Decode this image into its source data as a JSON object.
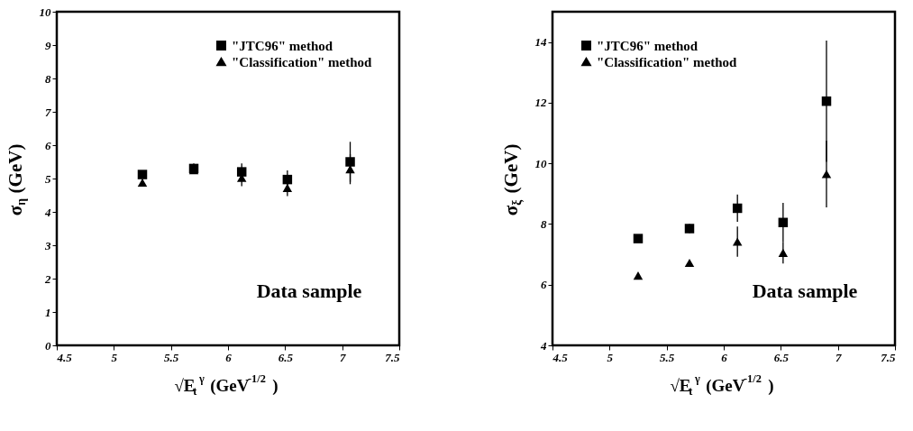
{
  "chart_data": [
    {
      "type": "scatter",
      "xlabel": "√E$_{t}$$^{γ}$ (GeV$^{-1/2}$)",
      "ylabel": "σ$_{η}$ (GeV)",
      "xlim": [
        4.5,
        7.5
      ],
      "xticks": [
        4.5,
        5,
        5.5,
        6,
        6.5,
        7,
        7.5
      ],
      "ylim": [
        0,
        10
      ],
      "yticks": [
        0,
        1,
        2,
        3,
        4,
        5,
        6,
        7,
        8,
        9,
        10
      ],
      "grid": false,
      "legend": "top right",
      "annotations": [
        "Data sample"
      ],
      "series": [
        {
          "name": "\"JTC96\" method",
          "color": "#000000",
          "marker": "square",
          "x": [
            5.25,
            5.7,
            6.12,
            6.52,
            7.07
          ],
          "values": [
            5.12,
            5.3,
            5.2,
            4.97,
            5.5
          ],
          "errors": [
            0.1,
            0.15,
            0.25,
            0.27,
            0.6
          ]
        },
        {
          "name": "\"Classification\" method",
          "color": "#000000",
          "marker": "triangle",
          "x": [
            5.25,
            5.7,
            6.12,
            6.52,
            7.07
          ],
          "values": [
            4.88,
            5.25,
            5.02,
            4.72,
            5.28
          ],
          "errors": [
            0.1,
            0.1,
            0.25,
            0.25,
            0.45
          ]
        }
      ]
    },
    {
      "type": "scatter",
      "xlabel": "√E$_{t}$$^{γ}$ (GeV$^{-1/2}$)",
      "ylabel": "σ$_{ξ}$ (GeV)",
      "xlim": [
        4.5,
        7.5
      ],
      "xticks": [
        4.5,
        5,
        5.5,
        6,
        6.5,
        7,
        7.5
      ],
      "ylim": [
        4,
        15
      ],
      "yticks": [
        4,
        6,
        8,
        10,
        12,
        14
      ],
      "grid": false,
      "legend": "top left",
      "annotations": [
        "Data sample"
      ],
      "series": [
        {
          "name": "\"JTC96\" method",
          "color": "#000000",
          "marker": "square",
          "x": [
            5.25,
            5.7,
            6.12,
            6.52,
            6.9
          ],
          "values": [
            7.52,
            7.85,
            8.52,
            8.05,
            12.05
          ],
          "errors": [
            0.1,
            0.15,
            0.45,
            0.65,
            2.0
          ]
        },
        {
          "name": "\"Classification\" method",
          "color": "#000000",
          "marker": "triangle",
          "x": [
            5.25,
            5.7,
            6.12,
            6.52,
            6.9
          ],
          "values": [
            6.3,
            6.72,
            7.42,
            7.05,
            9.65
          ],
          "errors": [
            0.05,
            0.1,
            0.5,
            0.35,
            1.1
          ]
        }
      ]
    }
  ]
}
